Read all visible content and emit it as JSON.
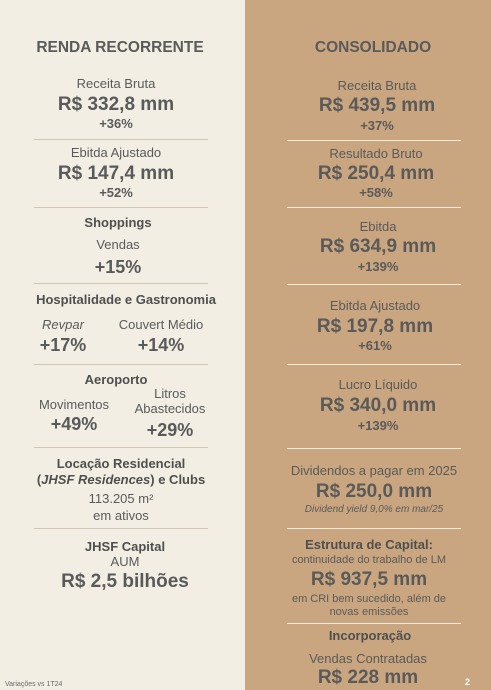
{
  "left": {
    "title": "RENDA RECORRENTE",
    "receita": {
      "label": "Receita Bruta",
      "value": "R$ 332,8 mm",
      "change": "+36%"
    },
    "ebitda": {
      "label": "Ebitda Ajustado",
      "value": "R$ 147,4 mm",
      "change": "+52%"
    },
    "shoppings": {
      "title": "Shoppings",
      "label": "Vendas",
      "change": "+15%"
    },
    "hospitalidade": {
      "title": "Hospitalidade e Gastronomia",
      "revpar_label": "Revpar",
      "revpar_change": "+17%",
      "couvert_label": "Couvert Médio",
      "couvert_change": "+14%"
    },
    "aeroporto": {
      "title": "Aeroporto",
      "mov_label": "Movimentos",
      "mov_change": "+49%",
      "litros_label_1": "Litros",
      "litros_label_2": "Abastecidos",
      "litros_change": "+29%"
    },
    "locacao": {
      "title_1": "Locação Residencial",
      "title_2_open": "(",
      "title_2_italic": "JHSF Residences",
      "title_2_close": ") e Clubs",
      "value_1": "113.205 m²",
      "value_2": "em ativos"
    },
    "capital": {
      "title": "JHSF Capital",
      "label": "AUM",
      "value": "R$ 2,5 bilhões"
    }
  },
  "right": {
    "title": "CONSOLIDADO",
    "receita": {
      "label": "Receita Bruta",
      "value": "R$ 439,5 mm",
      "change": "+37%"
    },
    "resultado": {
      "label": "Resultado Bruto",
      "value": "R$ 250,4 mm",
      "change": "+58%"
    },
    "ebitda": {
      "label": "Ebitda",
      "value": "R$ 634,9 mm",
      "change": "+139%"
    },
    "ebitda_aj": {
      "label": "Ebitda Ajustado",
      "value": "R$ 197,8 mm",
      "change": "+61%"
    },
    "lucro": {
      "label": "Lucro Líquido",
      "value": "R$ 340,0 mm",
      "change": "+139%"
    },
    "dividendos": {
      "label": "Dividendos a pagar em 2025",
      "value": "R$ 250,0 mm",
      "note": "Dividend yield 9,0% em mar/25"
    },
    "estrutura": {
      "title": "Estrutura de Capital:",
      "sub": "continuidade do trabalho de LM",
      "value": "R$ 937,5 mm",
      "note_1": "em CRI bem sucedido, além de",
      "note_2": "novas emissões"
    },
    "incorporacao": {
      "title": "Incorporação",
      "label": "Vendas Contratadas",
      "value": "R$ 228 mm"
    }
  },
  "footer": {
    "note": "Variações vs 1T24",
    "page": "2"
  }
}
